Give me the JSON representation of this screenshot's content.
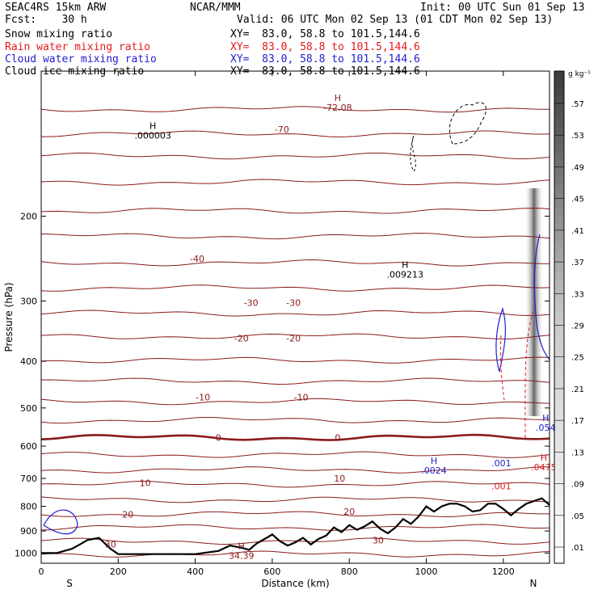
{
  "header": {
    "model": "SEAC4RS 15km ARW",
    "center": "NCAR/MMM",
    "init": "Init: 00 UTC Sun 01 Sep 13",
    "fcst": "Fcst:    30 h",
    "valid": "Valid: 06 UTC Mon 02 Sep 13 (01 CDT Mon 02 Sep 13)",
    "fields": [
      {
        "name": "Snow mixing ratio",
        "color": "#000000",
        "xy": "XY=  83.0, 58.8 to 101.5,144.6"
      },
      {
        "name": "Rain water mixing ratio",
        "color": "#e41a1c",
        "xy": "XY=  83.0, 58.8 to 101.5,144.6"
      },
      {
        "name": "Cloud water mixing ratio",
        "color": "#1f1fd0",
        "xy": "XY=  83.0, 58.8 to 101.5,144.6"
      },
      {
        "name": "Cloud ice mixing ratio",
        "color": "#000000",
        "xy": "XY=  83.0, 58.8 to 101.5,144.6"
      }
    ]
  },
  "chart_data": {
    "type": "cross-section",
    "xlabel": "Distance (km)",
    "ylabel": "Pressure (hPa)",
    "xlim": [
      0,
      1320
    ],
    "ylim": [
      1050,
      100
    ],
    "y_scale": "log",
    "x_ticks": [
      0,
      200,
      400,
      600,
      800,
      1000,
      1200
    ],
    "y_ticks": [
      200,
      300,
      400,
      500,
      600,
      700,
      800,
      900,
      1000
    ],
    "end_labels": {
      "left": "S",
      "right": "N"
    },
    "temperature_contours": {
      "units": "°C",
      "color": "#8b1a1a",
      "labels": [
        {
          "value": "-70",
          "x": 625,
          "p": 132
        },
        {
          "value": "-40",
          "x": 405,
          "p": 245
        },
        {
          "value": "-30",
          "x": 545,
          "p": 302
        },
        {
          "value": "-30",
          "x": 655,
          "p": 302
        },
        {
          "value": "-20",
          "x": 520,
          "p": 358
        },
        {
          "value": "-20",
          "x": 655,
          "p": 358
        },
        {
          "value": "-10",
          "x": 420,
          "p": 475
        },
        {
          "value": "-10",
          "x": 675,
          "p": 475
        },
        {
          "value": "0",
          "x": 460,
          "p": 576
        },
        {
          "value": "0",
          "x": 770,
          "p": 576
        },
        {
          "value": "10",
          "x": 270,
          "p": 715
        },
        {
          "value": "10",
          "x": 775,
          "p": 700
        },
        {
          "value": "20",
          "x": 225,
          "p": 832
        },
        {
          "value": "20",
          "x": 800,
          "p": 820
        },
        {
          "value": "30",
          "x": 180,
          "p": 958
        },
        {
          "value": "30",
          "x": 875,
          "p": 940
        }
      ]
    },
    "extrema": [
      {
        "type": "H",
        "value": ".000003",
        "x": 290,
        "p": 135,
        "color": "#000000"
      },
      {
        "type": "H",
        "value": ".009213",
        "x": 945,
        "p": 262,
        "color": "#000000"
      },
      {
        "type": "H",
        "value": "-72.08",
        "x": 770,
        "p": 118,
        "color": "#8b1a1a"
      },
      {
        "type": "H",
        "value": "34.39",
        "x": 520,
        "p": 1005,
        "color": "#8b1a1a"
      },
      {
        "type": "H",
        "value": ".054",
        "x": 1310,
        "p": 545,
        "color": "#1f1fd0"
      },
      {
        "type": "H",
        "value": ".0475",
        "x": 1305,
        "p": 658,
        "color": "#e41a1c"
      },
      {
        "type": "H",
        "value": ".0024",
        "x": 1020,
        "p": 668,
        "color": "#1f1fd0"
      },
      {
        "type": "",
        "value": ".001",
        "x": 1195,
        "p": 645,
        "color": "#1f1fd0"
      },
      {
        "type": "",
        "value": ".001",
        "x": 1195,
        "p": 720,
        "color": "#e41a1c"
      }
    ],
    "colorbar": {
      "units": "g kg⁻¹",
      "values": [
        ".01",
        ".05",
        ".09",
        ".13",
        ".17",
        ".21",
        ".25",
        ".29",
        ".33",
        ".37",
        ".41",
        ".45",
        ".49",
        ".53",
        ".57"
      ]
    },
    "terrain": {
      "x": [
        0,
        40,
        80,
        100,
        120,
        150,
        180,
        200,
        240,
        300,
        400,
        460,
        490,
        520,
        540,
        560,
        580,
        600,
        620,
        640,
        660,
        680,
        700,
        720,
        740,
        760,
        780,
        800,
        820,
        840,
        860,
        880,
        900,
        920,
        940,
        960,
        980,
        1000,
        1020,
        1040,
        1060,
        1080,
        1100,
        1120,
        1140,
        1160,
        1180,
        1200,
        1220,
        1240,
        1260,
        1280,
        1300,
        1320
      ],
      "p": [
        1000,
        1000,
        980,
        960,
        940,
        930,
        980,
        1005,
        1005,
        1005,
        1005,
        990,
        965,
        975,
        985,
        955,
        935,
        915,
        945,
        965,
        950,
        930,
        960,
        935,
        920,
        885,
        905,
        875,
        895,
        880,
        860,
        890,
        910,
        885,
        850,
        870,
        840,
        800,
        820,
        800,
        790,
        790,
        800,
        820,
        815,
        790,
        790,
        810,
        835,
        810,
        790,
        780,
        770,
        795
      ]
    }
  }
}
